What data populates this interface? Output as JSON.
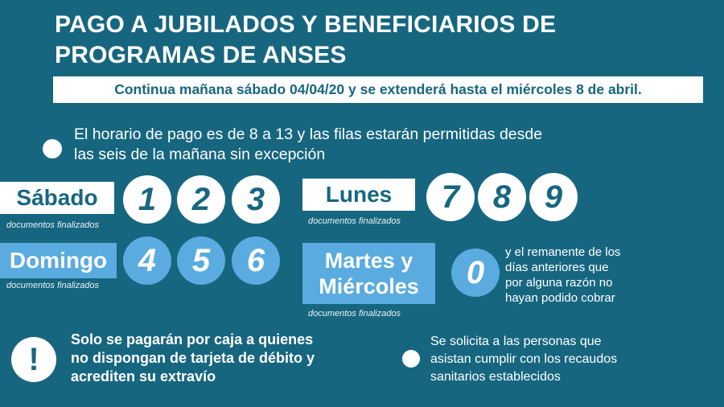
{
  "title": {
    "line1": "PAGO A JUBILADOS Y BENEFICIARIOS DE",
    "line2": "PROGRAMAS DE ANSES"
  },
  "subtitle": "Continua mañana sábado 04/04/20 y se extenderá hasta el miércoles 8 de abril.",
  "schedule_note": {
    "line1": "El horario de pago es de 8 a 13 y las filas estarán permitidas desde",
    "line2": "las seis de la mañana sin excepción"
  },
  "days": [
    {
      "label": "Sábado",
      "caption": "documentos finalizados",
      "digits": [
        "1",
        "2",
        "3"
      ]
    },
    {
      "label": "Domingo",
      "caption": "documentos finalizados",
      "digits": [
        "4",
        "5",
        "6"
      ]
    },
    {
      "label": "Lunes",
      "caption": "documentos finalizados",
      "digits": [
        "7",
        "8",
        "9"
      ]
    },
    {
      "label_line1": "Martes y",
      "label_line2": "Miércoles",
      "caption": "documentos finalizados",
      "digits": [
        "0"
      ],
      "note": [
        "y el remanente de los",
        "días anteriores que",
        "por alguna razón no",
        "hayan podido cobrar"
      ]
    }
  ],
  "cash_note": [
    "Solo se pagarán por caja a quienes",
    "no dispongan de tarjeta de débito y",
    "acrediten su extravío"
  ],
  "exclamation": "!",
  "health_note": [
    "Se solicita a las personas que",
    "asistan cumplir con los recaudos",
    "sanitarios establecidos"
  ],
  "colors": {
    "background": "#176680",
    "accent": "#5aabdf",
    "white": "#ffffff"
  }
}
